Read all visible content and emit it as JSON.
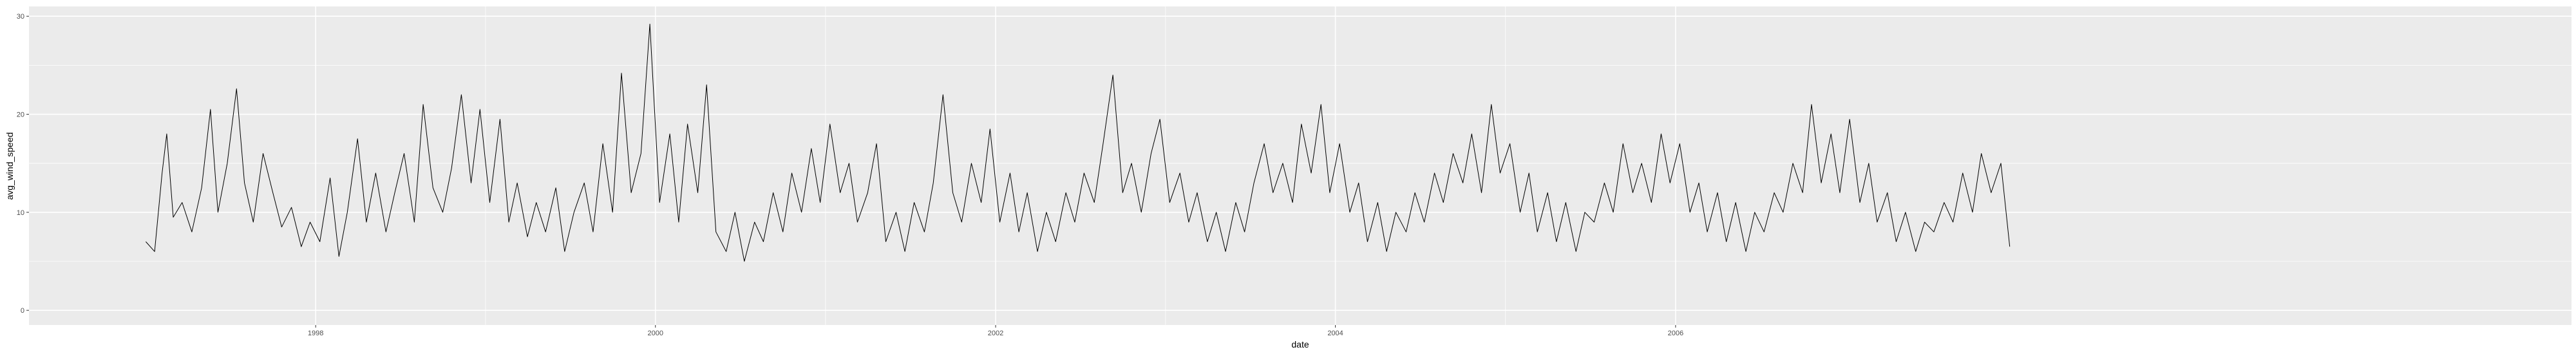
{
  "chart_data": {
    "type": "line",
    "title": "",
    "xlabel": "date",
    "ylabel": "avg_wind_speed",
    "x_type": "date",
    "xlim": [
      "1996-04-25",
      "2011-04-10"
    ],
    "ylim": [
      -1.5,
      31
    ],
    "x_ticks": [
      {
        "date": "1998-01-01",
        "label": "1998"
      },
      {
        "date": "2000-01-01",
        "label": "2000"
      },
      {
        "date": "2002-01-01",
        "label": "2002"
      },
      {
        "date": "2004-01-01",
        "label": "2004"
      },
      {
        "date": "2006-01-01",
        "label": "2006"
      }
    ],
    "y_ticks": [
      0,
      10,
      20,
      30
    ],
    "grid": true,
    "legend": "none",
    "colors": {
      "panel": "#ebebeb",
      "grid": "#ffffff",
      "line": "#000000",
      "tick_text": "#4d4d4d",
      "title_text": "#000000"
    },
    "series": [
      {
        "name": "",
        "points": [
          [
            "1997-01-01",
            7.0
          ],
          [
            "1997-01-20",
            6.0
          ],
          [
            "1997-02-05",
            14.0
          ],
          [
            "1997-02-15",
            18.0
          ],
          [
            "1997-03-01",
            9.5
          ],
          [
            "1997-03-20",
            11.0
          ],
          [
            "1997-04-10",
            8.0
          ],
          [
            "1997-05-01",
            12.5
          ],
          [
            "1997-05-20",
            20.5
          ],
          [
            "1997-06-05",
            10.0
          ],
          [
            "1997-06-25",
            15.0
          ],
          [
            "1997-07-15",
            22.6
          ],
          [
            "1997-08-01",
            13.0
          ],
          [
            "1997-08-20",
            9.0
          ],
          [
            "1997-09-10",
            16.0
          ],
          [
            "1997-10-01",
            12.0
          ],
          [
            "1997-10-20",
            8.5
          ],
          [
            "1997-11-10",
            10.5
          ],
          [
            "1997-12-01",
            6.5
          ],
          [
            "1997-12-20",
            9.0
          ],
          [
            "1998-01-10",
            7.0
          ],
          [
            "1998-02-01",
            13.5
          ],
          [
            "1998-02-20",
            5.5
          ],
          [
            "1998-03-10",
            10.0
          ],
          [
            "1998-04-01",
            17.5
          ],
          [
            "1998-04-20",
            9.0
          ],
          [
            "1998-05-10",
            14.0
          ],
          [
            "1998-06-01",
            8.0
          ],
          [
            "1998-06-20",
            12.0
          ],
          [
            "1998-07-10",
            16.0
          ],
          [
            "1998-08-01",
            9.0
          ],
          [
            "1998-08-20",
            21.0
          ],
          [
            "1998-09-10",
            12.5
          ],
          [
            "1998-10-01",
            10.0
          ],
          [
            "1998-10-20",
            14.5
          ],
          [
            "1998-11-10",
            22.0
          ],
          [
            "1998-12-01",
            13.0
          ],
          [
            "1998-12-20",
            20.5
          ],
          [
            "1999-01-10",
            11.0
          ],
          [
            "1999-02-01",
            19.5
          ],
          [
            "1999-02-20",
            9.0
          ],
          [
            "1999-03-10",
            13.0
          ],
          [
            "1999-04-01",
            7.5
          ],
          [
            "1999-04-20",
            11.0
          ],
          [
            "1999-05-10",
            8.0
          ],
          [
            "1999-06-01",
            12.5
          ],
          [
            "1999-06-20",
            6.0
          ],
          [
            "1999-07-10",
            10.0
          ],
          [
            "1999-08-01",
            13.0
          ],
          [
            "1999-08-20",
            8.0
          ],
          [
            "1999-09-10",
            17.0
          ],
          [
            "1999-10-01",
            10.0
          ],
          [
            "1999-10-20",
            24.2
          ],
          [
            "1999-11-10",
            12.0
          ],
          [
            "1999-12-01",
            16.0
          ],
          [
            "1999-12-20",
            29.2
          ],
          [
            "2000-01-10",
            11.0
          ],
          [
            "2000-02-01",
            18.0
          ],
          [
            "2000-02-20",
            9.0
          ],
          [
            "2000-03-10",
            19.0
          ],
          [
            "2000-04-01",
            12.0
          ],
          [
            "2000-04-20",
            23.0
          ],
          [
            "2000-05-10",
            8.0
          ],
          [
            "2000-06-01",
            6.0
          ],
          [
            "2000-06-20",
            10.0
          ],
          [
            "2000-07-10",
            5.0
          ],
          [
            "2000-08-01",
            9.0
          ],
          [
            "2000-08-20",
            7.0
          ],
          [
            "2000-09-10",
            12.0
          ],
          [
            "2000-10-01",
            8.0
          ],
          [
            "2000-10-20",
            14.0
          ],
          [
            "2000-11-10",
            10.0
          ],
          [
            "2000-12-01",
            16.5
          ],
          [
            "2000-12-20",
            11.0
          ],
          [
            "2001-01-10",
            19.0
          ],
          [
            "2001-02-01",
            12.0
          ],
          [
            "2001-02-20",
            15.0
          ],
          [
            "2001-03-10",
            9.0
          ],
          [
            "2001-04-01",
            12.0
          ],
          [
            "2001-04-20",
            17.0
          ],
          [
            "2001-05-10",
            7.0
          ],
          [
            "2001-06-01",
            10.0
          ],
          [
            "2001-06-20",
            6.0
          ],
          [
            "2001-07-10",
            11.0
          ],
          [
            "2001-08-01",
            8.0
          ],
          [
            "2001-08-20",
            13.0
          ],
          [
            "2001-09-10",
            22.0
          ],
          [
            "2001-10-01",
            12.0
          ],
          [
            "2001-10-20",
            9.0
          ],
          [
            "2001-11-10",
            15.0
          ],
          [
            "2001-12-01",
            11.0
          ],
          [
            "2001-12-20",
            18.5
          ],
          [
            "2002-01-10",
            9.0
          ],
          [
            "2002-02-01",
            14.0
          ],
          [
            "2002-02-20",
            8.0
          ],
          [
            "2002-03-10",
            12.0
          ],
          [
            "2002-04-01",
            6.0
          ],
          [
            "2002-04-20",
            10.0
          ],
          [
            "2002-05-10",
            7.0
          ],
          [
            "2002-06-01",
            12.0
          ],
          [
            "2002-06-20",
            9.0
          ],
          [
            "2002-07-10",
            14.0
          ],
          [
            "2002-08-01",
            11.0
          ],
          [
            "2002-08-20",
            17.0
          ],
          [
            "2002-09-10",
            24.0
          ],
          [
            "2002-10-01",
            12.0
          ],
          [
            "2002-10-20",
            15.0
          ],
          [
            "2002-11-10",
            10.0
          ],
          [
            "2002-12-01",
            16.0
          ],
          [
            "2002-12-20",
            19.5
          ],
          [
            "2003-01-10",
            11.0
          ],
          [
            "2003-02-01",
            14.0
          ],
          [
            "2003-02-20",
            9.0
          ],
          [
            "2003-03-10",
            12.0
          ],
          [
            "2003-04-01",
            7.0
          ],
          [
            "2003-04-20",
            10.0
          ],
          [
            "2003-05-10",
            6.0
          ],
          [
            "2003-06-01",
            11.0
          ],
          [
            "2003-06-20",
            8.0
          ],
          [
            "2003-07-10",
            13.0
          ],
          [
            "2003-08-01",
            17.0
          ],
          [
            "2003-08-20",
            12.0
          ],
          [
            "2003-09-10",
            15.0
          ],
          [
            "2003-10-01",
            11.0
          ],
          [
            "2003-10-20",
            19.0
          ],
          [
            "2003-11-10",
            14.0
          ],
          [
            "2003-12-01",
            21.0
          ],
          [
            "2003-12-20",
            12.0
          ],
          [
            "2004-01-10",
            17.0
          ],
          [
            "2004-02-01",
            10.0
          ],
          [
            "2004-02-20",
            13.0
          ],
          [
            "2004-03-10",
            7.0
          ],
          [
            "2004-04-01",
            11.0
          ],
          [
            "2004-04-20",
            6.0
          ],
          [
            "2004-05-10",
            10.0
          ],
          [
            "2004-06-01",
            8.0
          ],
          [
            "2004-06-20",
            12.0
          ],
          [
            "2004-07-10",
            9.0
          ],
          [
            "2004-08-01",
            14.0
          ],
          [
            "2004-08-20",
            11.0
          ],
          [
            "2004-09-10",
            16.0
          ],
          [
            "2004-10-01",
            13.0
          ],
          [
            "2004-10-20",
            18.0
          ],
          [
            "2004-11-10",
            12.0
          ],
          [
            "2004-12-01",
            21.0
          ],
          [
            "2004-12-20",
            14.0
          ],
          [
            "2005-01-10",
            17.0
          ],
          [
            "2005-02-01",
            10.0
          ],
          [
            "2005-02-20",
            14.0
          ],
          [
            "2005-03-10",
            8.0
          ],
          [
            "2005-04-01",
            12.0
          ],
          [
            "2005-04-20",
            7.0
          ],
          [
            "2005-05-10",
            11.0
          ],
          [
            "2005-06-01",
            6.0
          ],
          [
            "2005-06-20",
            10.0
          ],
          [
            "2005-07-10",
            9.0
          ],
          [
            "2005-08-01",
            13.0
          ],
          [
            "2005-08-20",
            10.0
          ],
          [
            "2005-09-10",
            17.0
          ],
          [
            "2005-10-01",
            12.0
          ],
          [
            "2005-10-20",
            15.0
          ],
          [
            "2005-11-10",
            11.0
          ],
          [
            "2005-12-01",
            18.0
          ],
          [
            "2005-12-20",
            13.0
          ],
          [
            "2006-01-10",
            17.0
          ],
          [
            "2006-02-01",
            10.0
          ],
          [
            "2006-02-20",
            13.0
          ],
          [
            "2006-03-10",
            8.0
          ],
          [
            "2006-04-01",
            12.0
          ],
          [
            "2006-04-20",
            7.0
          ],
          [
            "2006-05-10",
            11.0
          ],
          [
            "2006-06-01",
            6.0
          ],
          [
            "2006-06-20",
            10.0
          ],
          [
            "2006-07-10",
            8.0
          ],
          [
            "2006-08-01",
            12.0
          ],
          [
            "2006-08-20",
            10.0
          ],
          [
            "2006-09-10",
            15.0
          ],
          [
            "2006-10-01",
            12.0
          ],
          [
            "2006-10-20",
            21.0
          ],
          [
            "2006-11-10",
            13.0
          ],
          [
            "2006-12-01",
            18.0
          ],
          [
            "2006-12-20",
            12.0
          ],
          [
            "2007-01-10",
            19.5
          ],
          [
            "2007-02-01",
            11.0
          ],
          [
            "2007-02-20",
            15.0
          ],
          [
            "2007-03-10",
            9.0
          ],
          [
            "2007-04-01",
            12.0
          ],
          [
            "2007-04-20",
            7.0
          ],
          [
            "2007-05-10",
            10.0
          ],
          [
            "2007-06-01",
            6.0
          ],
          [
            "2007-06-20",
            9.0
          ],
          [
            "2007-07-10",
            8.0
          ],
          [
            "2007-08-01",
            11.0
          ],
          [
            "2007-08-20",
            9.0
          ],
          [
            "2007-09-10",
            14.0
          ],
          [
            "2007-10-01",
            10.0
          ],
          [
            "2007-10-20",
            16.0
          ],
          [
            "2007-11-10",
            12.0
          ],
          [
            "2007-12-01",
            15.0
          ],
          [
            "2007-12-20",
            6.5
          ]
        ]
      }
    ]
  }
}
